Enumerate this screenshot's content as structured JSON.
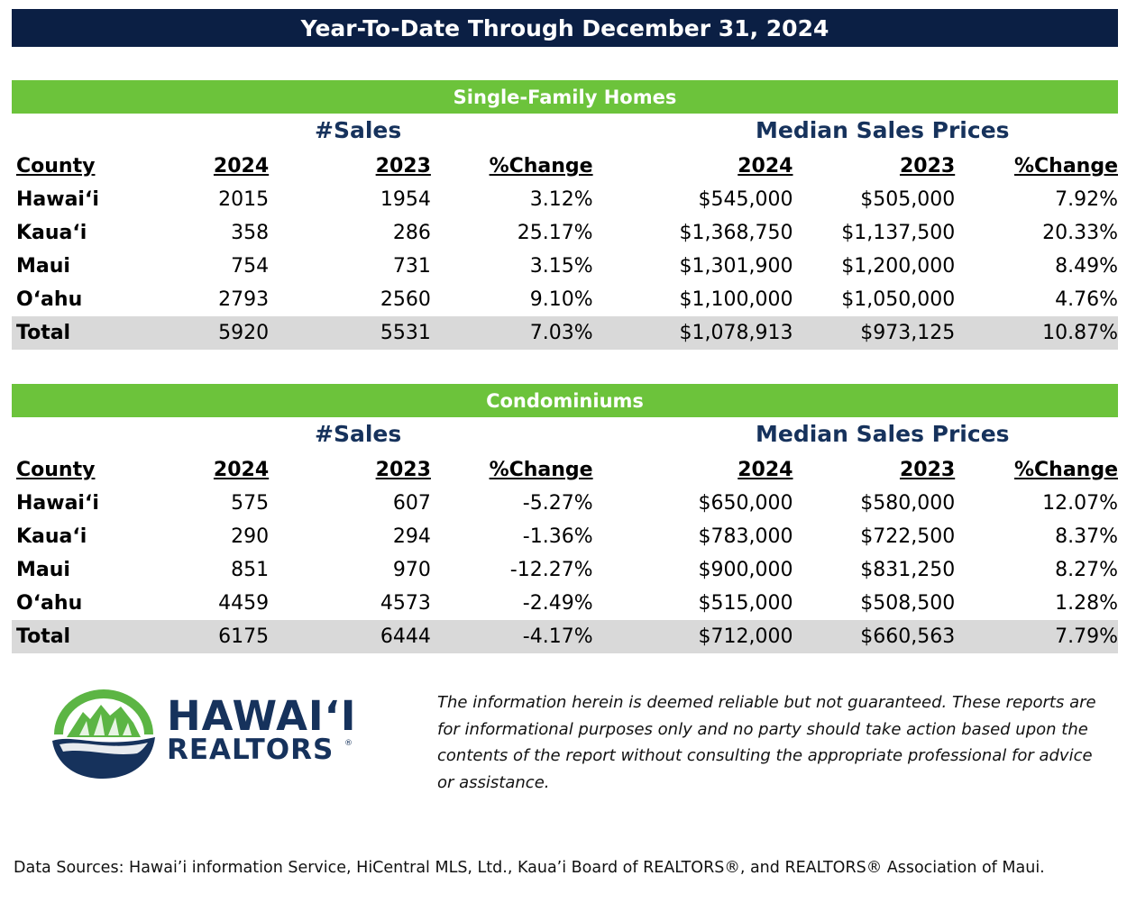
{
  "title": "Year-To-Date Through December 31, 2024",
  "sections": [
    {
      "heading": "Single-Family Homes",
      "group_sales": "#Sales",
      "group_prices": "Median Sales Prices",
      "columns": [
        "County",
        "2024",
        "2023",
        "%Change",
        "2024",
        "2023",
        "%Change"
      ],
      "rows": [
        [
          "Hawaiʻi",
          "2015",
          "1954",
          "3.12%",
          "$545,000",
          "$505,000",
          "7.92%"
        ],
        [
          "Kauaʻi",
          "358",
          "286",
          "25.17%",
          "$1,368,750",
          "$1,137,500",
          "20.33%"
        ],
        [
          "Maui",
          "754",
          "731",
          "3.15%",
          "$1,301,900",
          "$1,200,000",
          "8.49%"
        ],
        [
          "Oʻahu",
          "2793",
          "2560",
          "9.10%",
          "$1,100,000",
          "$1,050,000",
          "4.76%"
        ],
        [
          "Total",
          "5920",
          "5531",
          "7.03%",
          "$1,078,913",
          "$973,125",
          "10.87%"
        ]
      ]
    },
    {
      "heading": "Condominiums",
      "group_sales": "#Sales",
      "group_prices": "Median Sales Prices",
      "columns": [
        "County",
        "2024",
        "2023",
        "%Change",
        "2024",
        "2023",
        "%Change"
      ],
      "rows": [
        [
          "Hawaiʻi",
          "575",
          "607",
          "-5.27%",
          "$650,000",
          "$580,000",
          "12.07%"
        ],
        [
          "Kauaʻi",
          "290",
          "294",
          "-1.36%",
          "$783,000",
          "$722,500",
          "8.37%"
        ],
        [
          "Maui",
          "851",
          "970",
          "-12.27%",
          "$900,000",
          "$831,250",
          "8.27%"
        ],
        [
          "Oʻahu",
          "4459",
          "4573",
          "-2.49%",
          "$515,000",
          "$508,500",
          "1.28%"
        ],
        [
          "Total",
          "6175",
          "6444",
          "-4.17%",
          "$712,000",
          "$660,563",
          "7.79%"
        ]
      ]
    }
  ],
  "logo": {
    "line1": "HAWAIʻI",
    "line2": "REALTORS",
    "reg": "®",
    "colors": {
      "navy": "#16325c",
      "green": "#5cb544"
    }
  },
  "disclaimer": "The information herein is deemed reliable but not guaranteed. These reports are for informational purposes only and no party should take action based upon the contents of the report without consulting the appropriate professional for advice or assistance.",
  "sources": "Data Sources: Hawai’i information Service, HiCentral MLS, Ltd., Kaua’i Board of REALTORS®, and REALTORS® Association of Maui.",
  "colors": {
    "title_bar": "#0b1f44",
    "section_bar": "#6cc33b",
    "group_label": "#16325c",
    "total_row": "#d9d9d9"
  }
}
